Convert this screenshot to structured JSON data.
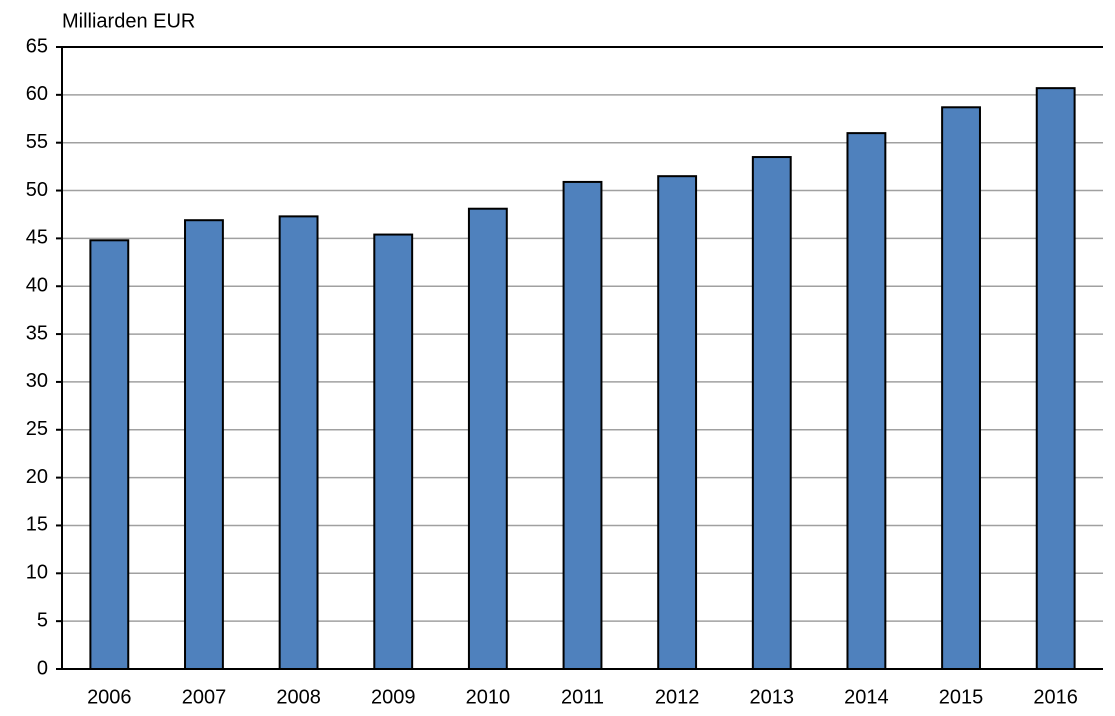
{
  "chart_data": {
    "type": "bar",
    "y_axis_label": "Milliarden EUR",
    "categories": [
      "2006",
      "2007",
      "2008",
      "2009",
      "2010",
      "2011",
      "2012",
      "2013",
      "2014",
      "2015",
      "2016"
    ],
    "values": [
      44.8,
      46.9,
      47.3,
      45.4,
      48.1,
      50.9,
      51.5,
      53.5,
      56.0,
      58.7,
      60.7
    ],
    "color": "#4f81bd",
    "ylim": [
      0,
      65
    ],
    "yticks": [
      0,
      5,
      10,
      15,
      20,
      25,
      30,
      35,
      40,
      45,
      50,
      55,
      60,
      65
    ],
    "grid": true
  }
}
